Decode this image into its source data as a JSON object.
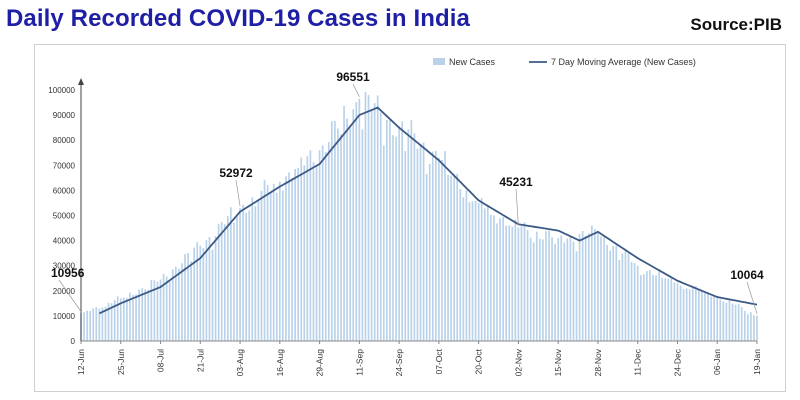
{
  "header": {
    "title": "Daily Recorded COVID-19 Cases in India",
    "source": "Source:PIB"
  },
  "colors": {
    "title": "#1f1fa6",
    "bar": "#b9d2e9",
    "line": "#3d5a86",
    "axis_text": "#333333"
  },
  "chart_data": {
    "type": "bar",
    "title": "Daily Recorded COVID-19 Cases in India",
    "xlabel": "",
    "ylabel": "",
    "ylim": [
      0,
      100000
    ],
    "yticks": [
      0,
      10000,
      20000,
      30000,
      40000,
      50000,
      60000,
      70000,
      80000,
      90000,
      100000
    ],
    "grid": false,
    "legend_position": "top",
    "x_tick_labels": [
      "12-Jun",
      "25-Jun",
      "08-Jul",
      "21-Jul",
      "03-Aug",
      "16-Aug",
      "29-Aug",
      "11-Sep",
      "24-Sep",
      "07-Oct",
      "20-Oct",
      "02-Nov",
      "15-Nov",
      "28-Nov",
      "11-Dec",
      "24-Dec",
      "06-Jan",
      "19-Jan"
    ],
    "x_tick_interval_days": 13,
    "series": [
      {
        "name": "New Cases",
        "type": "bar",
        "anchors": [
          [
            "12-Jun",
            10956
          ],
          [
            "25-Jun",
            17000
          ],
          [
            "08-Jul",
            24500
          ],
          [
            "21-Jul",
            38000
          ],
          [
            "03-Aug",
            52972
          ],
          [
            "16-Aug",
            63500
          ],
          [
            "29-Aug",
            76000
          ],
          [
            "11-Sep",
            96551
          ],
          [
            "24-Sep",
            85500
          ],
          [
            "07-Oct",
            73000
          ],
          [
            "20-Oct",
            55000
          ],
          [
            "02-Nov",
            45231
          ],
          [
            "15-Nov",
            41000
          ],
          [
            "28-Nov",
            43000
          ],
          [
            "11-Dec",
            30000
          ],
          [
            "24-Dec",
            23000
          ],
          [
            "06-Jan",
            18000
          ],
          [
            "19-Jan",
            10064
          ]
        ]
      },
      {
        "name": "7 Day Moving Average (New Cases)",
        "type": "line",
        "anchors": [
          [
            "18-Jun",
            11000
          ],
          [
            "25-Jun",
            15000
          ],
          [
            "08-Jul",
            21500
          ],
          [
            "21-Jul",
            33000
          ],
          [
            "03-Aug",
            51500
          ],
          [
            "16-Aug",
            61500
          ],
          [
            "29-Aug",
            70500
          ],
          [
            "11-Sep",
            90000
          ],
          [
            "17-Sep",
            93000
          ],
          [
            "24-Sep",
            85000
          ],
          [
            "07-Oct",
            72000
          ],
          [
            "20-Oct",
            56000
          ],
          [
            "02-Nov",
            46500
          ],
          [
            "15-Nov",
            44000
          ],
          [
            "22-Nov",
            40000
          ],
          [
            "28-Nov",
            43500
          ],
          [
            "11-Dec",
            33000
          ],
          [
            "24-Dec",
            24000
          ],
          [
            "06-Jan",
            17500
          ],
          [
            "19-Jan",
            14500
          ]
        ]
      }
    ],
    "annotations": [
      {
        "label": "10956",
        "x": "12-Jun",
        "y": 10956
      },
      {
        "label": "52972",
        "x": "03-Aug",
        "y": 52972
      },
      {
        "label": "96551",
        "x": "11-Sep",
        "y": 96551
      },
      {
        "label": "45231",
        "x": "02-Nov",
        "y": 45231
      },
      {
        "label": "10064",
        "x": "19-Jan",
        "y": 10064
      }
    ]
  }
}
